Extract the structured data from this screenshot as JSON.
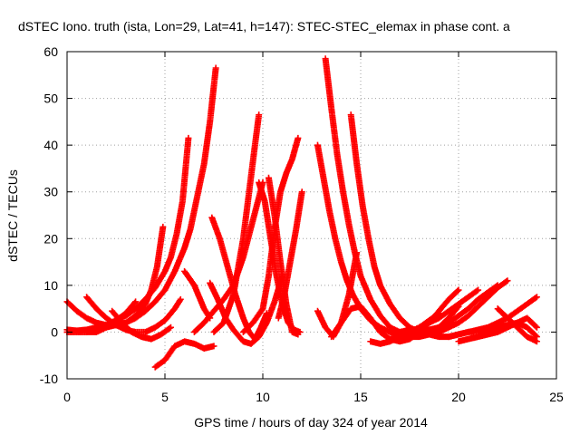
{
  "chart_data": {
    "type": "scatter",
    "title": "dSTEC Iono. truth (ista, Lon=29, Lat=41, h=147): STEC-STEC_elemax in phase cont. a",
    "xlabel": "GPS time / hours of day 324 of year 2014",
    "ylabel": "dSTEC  / TECUs",
    "xlim": [
      0,
      25
    ],
    "ylim": [
      -10,
      60
    ],
    "xticks": [
      0,
      5,
      10,
      15,
      20,
      25
    ],
    "yticks": [
      -10,
      0,
      10,
      20,
      30,
      40,
      50,
      60
    ],
    "x_tick_labels": [
      "0",
      "5",
      "10",
      "15",
      "20",
      "25"
    ],
    "y_tick_labels": [
      "-10",
      "0",
      "10",
      "20",
      "30",
      "40",
      "50",
      "60"
    ],
    "grid": true,
    "marker_color": "#ff0000",
    "series": [
      {
        "x": [
          0.0,
          0.5,
          1.0,
          1.5,
          2.0,
          2.5,
          3.0,
          3.5,
          4.0,
          4.5,
          5.0,
          5.5,
          6.0,
          6.3,
          6.6,
          7.0,
          7.3,
          7.6
        ],
        "y": [
          0.0,
          0.0,
          0.0,
          0.5,
          1.0,
          1.5,
          2.0,
          3.0,
          4.5,
          6.5,
          9.0,
          13.0,
          18.0,
          22.0,
          28.0,
          36.0,
          45.0,
          56.5
        ]
      },
      {
        "x": [
          0.0,
          0.5,
          1.0,
          1.5,
          2.0,
          2.5,
          3.0,
          3.5,
          4.0,
          4.5,
          5.0,
          5.3,
          5.6,
          5.9,
          6.2
        ],
        "y": [
          0.5,
          0.3,
          0.5,
          1.0,
          1.5,
          2.5,
          3.5,
          5.0,
          7.0,
          9.5,
          13.0,
          16.0,
          21.0,
          28.0,
          41.5
        ]
      },
      {
        "x": [
          0.0,
          0.5,
          1.0,
          1.5,
          2.0,
          2.5,
          3.0,
          3.5,
          4.0,
          4.3,
          4.6,
          4.9
        ],
        "y": [
          6.5,
          4.5,
          3.0,
          2.0,
          1.5,
          1.5,
          2.0,
          3.5,
          6.0,
          9.0,
          14.0,
          22.5
        ]
      },
      {
        "x": [
          1.0,
          1.5,
          2.0,
          2.5,
          3.0,
          3.5,
          4.0,
          4.5,
          5.0,
          5.5,
          5.8
        ],
        "y": [
          7.5,
          5.0,
          3.0,
          1.5,
          0.5,
          0.0,
          0.0,
          1.0,
          2.5,
          5.0,
          7.0
        ]
      },
      {
        "x": [
          0.0,
          0.5,
          1.0,
          1.5,
          2.0,
          2.5,
          3.0,
          3.5
        ],
        "y": [
          0.0,
          0.0,
          0.0,
          0.0,
          1.0,
          2.5,
          4.0,
          6.5
        ]
      },
      {
        "x": [
          2.3,
          2.8,
          3.3,
          3.8,
          4.3,
          4.8,
          5.3
        ],
        "y": [
          4.5,
          2.0,
          0.0,
          -1.0,
          -1.5,
          -0.5,
          1.0
        ]
      },
      {
        "x": [
          4.5,
          5.0,
          5.5,
          6.0,
          6.5,
          7.0,
          7.5
        ],
        "y": [
          -7.5,
          -6.0,
          -3.0,
          -2.0,
          -2.5,
          -3.5,
          -3.0
        ]
      },
      {
        "x": [
          6.0,
          6.5,
          7.0,
          7.3
        ],
        "y": [
          13.0,
          10.0,
          5.0,
          3.0
        ]
      },
      {
        "x": [
          7.4,
          7.8,
          8.2,
          8.6,
          9.0,
          9.3,
          9.6,
          9.9,
          10.2
        ],
        "y": [
          24.5,
          20.0,
          14.0,
          8.0,
          3.0,
          0.0,
          -1.5,
          1.0,
          4.0
        ]
      },
      {
        "x": [
          7.3,
          7.7,
          8.1,
          8.5,
          9.0,
          9.4,
          9.8,
          10.2,
          10.6,
          11.0
        ],
        "y": [
          10.5,
          7.0,
          3.0,
          0.5,
          -2.0,
          -2.5,
          -1.0,
          2.0,
          6.5,
          12.0
        ]
      },
      {
        "x": [
          7.5,
          8.0,
          8.5,
          9.0,
          9.3,
          9.6,
          9.8
        ],
        "y": [
          0.0,
          2.0,
          8.0,
          20.0,
          30.0,
          40.0,
          46.5
        ]
      },
      {
        "x": [
          6.5,
          7.0,
          7.5,
          8.0,
          8.5,
          9.0,
          9.5,
          10.0
        ],
        "y": [
          0.0,
          2.0,
          4.5,
          7.0,
          10.0,
          16.0,
          24.0,
          32.0
        ]
      },
      {
        "x": [
          9.8,
          10.1,
          10.4,
          10.7,
          11.0,
          11.3,
          11.6,
          11.9
        ],
        "y": [
          32.0,
          28.0,
          20.0,
          12.0,
          6.0,
          2.0,
          0.5,
          0.0
        ]
      },
      {
        "x": [
          9.0,
          9.5,
          10.0,
          10.3,
          10.6,
          10.9,
          11.2,
          11.5,
          11.8
        ],
        "y": [
          0.0,
          2.0,
          5.0,
          12.0,
          22.0,
          30.0,
          34.0,
          37.0,
          41.5
        ]
      },
      {
        "x": [
          10.3,
          10.6,
          10.9,
          11.2,
          11.5,
          11.8
        ],
        "y": [
          33.0,
          25.0,
          15.0,
          6.0,
          0.0,
          -0.5
        ]
      },
      {
        "x": [
          10.8,
          11.1,
          11.4,
          11.7,
          12.0
        ],
        "y": [
          3.0,
          8.0,
          15.0,
          22.0,
          30.0
        ]
      },
      {
        "x": [
          12.8,
          13.1,
          13.4,
          13.7,
          14.0,
          14.3,
          14.6,
          15.0,
          15.5,
          16.0,
          16.5,
          17.0,
          17.5,
          18.0,
          18.5,
          19.0
        ],
        "y": [
          40.0,
          33.0,
          26.0,
          20.0,
          15.0,
          11.0,
          8.0,
          5.0,
          2.5,
          1.0,
          0.0,
          -0.5,
          0.0,
          1.0,
          2.5,
          4.0
        ]
      },
      {
        "x": [
          13.2,
          13.5,
          13.8,
          14.1,
          14.4,
          14.7,
          15.0,
          15.5,
          16.0,
          16.5,
          17.0,
          17.5
        ],
        "y": [
          58.5,
          48.0,
          38.0,
          30.0,
          23.0,
          17.0,
          12.0,
          7.0,
          3.5,
          1.0,
          0.0,
          0.5
        ]
      },
      {
        "x": [
          14.5,
          14.8,
          15.1,
          15.4,
          15.7,
          16.0,
          16.5,
          17.0,
          17.5,
          18.0,
          18.5,
          19.0,
          19.5,
          20.0
        ],
        "y": [
          46.5,
          36.0,
          27.0,
          20.0,
          14.0,
          10.0,
          6.0,
          3.0,
          1.0,
          0.0,
          0.0,
          1.0,
          3.0,
          5.5
        ]
      },
      {
        "x": [
          12.8,
          13.2,
          13.6,
          14.0,
          14.4,
          14.8
        ],
        "y": [
          4.5,
          1.0,
          -1.0,
          2.0,
          8.0,
          17.0
        ]
      },
      {
        "x": [
          13.5,
          14.0,
          14.5,
          15.0,
          15.5,
          16.0,
          16.5,
          17.0,
          17.5,
          18.0,
          18.5,
          19.0,
          19.5,
          20.0
        ],
        "y": [
          -1.0,
          2.0,
          5.0,
          5.5,
          3.0,
          0.0,
          -1.5,
          -2.0,
          -1.5,
          0.0,
          2.0,
          4.5,
          7.0,
          9.0
        ]
      },
      {
        "x": [
          15.5,
          16.0,
          16.5,
          17.0,
          17.5,
          18.0,
          18.5,
          19.0,
          19.5,
          20.0,
          20.5,
          21.0
        ],
        "y": [
          -2.0,
          -2.5,
          -2.0,
          -1.0,
          0.0,
          1.0,
          2.0,
          3.0,
          4.5,
          6.0,
          7.5,
          9.0
        ]
      },
      {
        "x": [
          16.5,
          17.0,
          17.5,
          18.0,
          18.5,
          19.0,
          19.5,
          20.0,
          20.5,
          21.0,
          21.5,
          22.0
        ],
        "y": [
          -1.5,
          -1.0,
          -0.5,
          0.0,
          0.5,
          1.0,
          2.0,
          3.5,
          5.0,
          7.0,
          8.5,
          10.0
        ]
      },
      {
        "x": [
          17.5,
          18.0,
          18.5,
          19.0,
          19.5,
          20.0,
          20.5,
          21.0,
          21.5,
          22.0,
          22.5
        ],
        "y": [
          -1.0,
          -1.0,
          -0.5,
          0.0,
          1.0,
          2.0,
          3.5,
          5.5,
          7.5,
          9.5,
          11.0
        ]
      },
      {
        "x": [
          18.5,
          19.0,
          19.5,
          20.0,
          20.5,
          21.0,
          21.5,
          22.0,
          22.5,
          23.0,
          23.5,
          24.0
        ],
        "y": [
          -0.5,
          -1.0,
          -1.0,
          -0.5,
          0.0,
          0.5,
          1.0,
          2.0,
          3.0,
          4.5,
          6.0,
          7.5
        ]
      },
      {
        "x": [
          20.0,
          20.5,
          21.0,
          21.5,
          22.0,
          22.5,
          23.0,
          23.5,
          24.0
        ],
        "y": [
          -2.0,
          -1.5,
          -1.0,
          -0.5,
          0.0,
          1.0,
          2.0,
          3.0,
          1.0
        ]
      },
      {
        "x": [
          22.0,
          22.5,
          23.0,
          23.5,
          24.0
        ],
        "y": [
          5.0,
          3.0,
          1.0,
          -1.0,
          -2.0
        ]
      },
      {
        "x": [
          19.5,
          20.0,
          20.5,
          21.0,
          21.5,
          22.0,
          22.5,
          23.0,
          23.5,
          24.0
        ],
        "y": [
          -1.0,
          -0.5,
          0.0,
          0.0,
          0.5,
          1.0,
          1.5,
          2.0,
          1.0,
          -1.0
        ]
      }
    ]
  }
}
